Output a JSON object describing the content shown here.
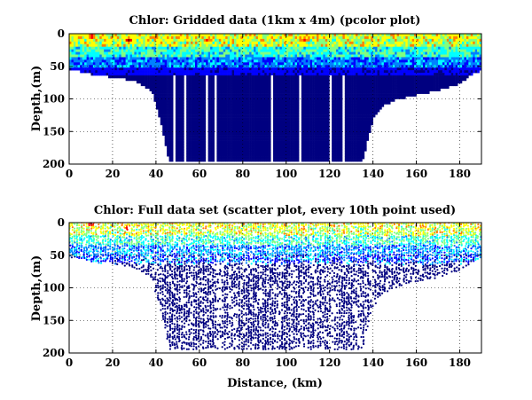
{
  "chart_data": [
    {
      "type": "heatmap",
      "title": "Chlor: Gridded data (1km x 4m) (pcolor plot)",
      "xlabel": "",
      "ylabel": "Depth,(m)",
      "xlim": [
        0,
        190
      ],
      "ylim": [
        200,
        0
      ],
      "xticks": [
        0,
        20,
        40,
        60,
        80,
        100,
        120,
        140,
        160,
        180
      ],
      "yticks": [
        0,
        50,
        100,
        150,
        200
      ],
      "grid": true,
      "colormap": [
        "#000080",
        "#0000ff",
        "#0080ff",
        "#00ffff",
        "#80ff80",
        "#ffff00",
        "#ff8000",
        "#ff0000",
        "#800000"
      ],
      "bottom_depth_profile": {
        "distance_km": [
          0,
          5,
          10,
          20,
          30,
          38,
          41,
          44,
          46,
          50,
          60,
          80,
          100,
          120,
          135,
          137,
          140,
          144,
          150,
          160,
          170,
          180,
          185,
          190
        ],
        "depth_m": [
          52,
          56,
          60,
          65,
          70,
          85,
          120,
          160,
          195,
          195,
          195,
          195,
          195,
          195,
          195,
          170,
          130,
          110,
          100,
          92,
          85,
          75,
          62,
          55
        ]
      },
      "high_value_patches": [
        {
          "distance_km": 10,
          "depth_m": 2,
          "level": "red"
        },
        {
          "distance_km": 27,
          "depth_m": 8,
          "level": "red"
        },
        {
          "distance_km": 63,
          "depth_m": 8,
          "level": "orange"
        },
        {
          "distance_km": 108,
          "depth_m": 8,
          "level": "orange"
        },
        {
          "distance_km": 45,
          "depth_m": 10,
          "level": "yellow"
        },
        {
          "distance_km": 82,
          "depth_m": 10,
          "level": "yellow"
        },
        {
          "distance_km": 140,
          "depth_m": 10,
          "level": "yellow"
        },
        {
          "distance_km": 160,
          "depth_m": 10,
          "level": "yellow"
        }
      ],
      "data_gaps_distance_km": [
        48,
        53,
        63,
        67,
        93,
        106,
        120,
        126
      ]
    },
    {
      "type": "scatter",
      "title": "Chlor: Full data set (scatter plot, every 10th point used)",
      "xlabel": "Distance, (km)",
      "ylabel": "Depth,(m)",
      "xlim": [
        0,
        190
      ],
      "ylim": [
        200,
        0
      ],
      "xticks": [
        0,
        20,
        40,
        60,
        80,
        100,
        120,
        140,
        160,
        180
      ],
      "yticks": [
        0,
        50,
        100,
        150,
        200
      ],
      "grid": true
    }
  ]
}
